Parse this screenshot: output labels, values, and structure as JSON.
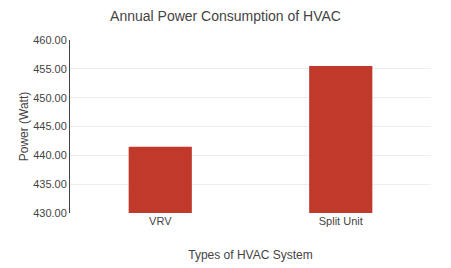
{
  "chart_data": {
    "type": "bar",
    "title": "Annual Power Consumption of HVAC",
    "xlabel": "Types of HVAC System",
    "ylabel": "Power (Watt)",
    "categories": [
      "VRV",
      "Split Unit"
    ],
    "values": [
      441.5,
      455.5
    ],
    "color": "#C1392B",
    "ylim": [
      430.0,
      460.0
    ],
    "yticks": [
      {
        "value": 430.0,
        "label": "430.00"
      },
      {
        "value": 435.0,
        "label": "435.00"
      },
      {
        "value": 440.0,
        "label": "440.00"
      },
      {
        "value": 445.0,
        "label": "445.00"
      },
      {
        "value": 450.0,
        "label": "450.00"
      },
      {
        "value": 455.0,
        "label": "455.00"
      },
      {
        "value": 460.0,
        "label": "460.00"
      }
    ],
    "grid": true
  }
}
